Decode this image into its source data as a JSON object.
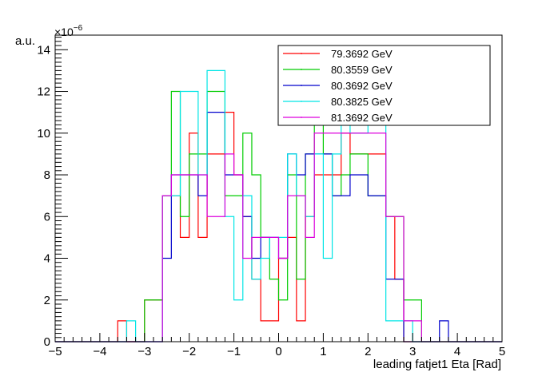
{
  "chart_data": {
    "type": "histogram-step",
    "xlabel": "leading fatjet1 Eta [Rad]",
    "ylabel": "a.u.",
    "y_multiplier_base": "×10",
    "y_multiplier_exp": "−6",
    "xlim": [
      -5,
      5
    ],
    "ylim": [
      0,
      14.7
    ],
    "x_ticks": [
      -5,
      -4,
      -3,
      -2,
      -1,
      0,
      1,
      2,
      3,
      4,
      5
    ],
    "x_tick_labels": [
      "−5",
      "−4",
      "−3",
      "−2",
      "−1",
      "0",
      "1",
      "2",
      "3",
      "4",
      "5"
    ],
    "y_ticks": [
      0,
      2,
      4,
      6,
      8,
      10,
      12,
      14
    ],
    "y_tick_labels": [
      "0",
      "2",
      "4",
      "6",
      "8",
      "10",
      "12",
      "14"
    ],
    "bin_edges": [
      -5.0,
      -4.8,
      -4.6,
      -4.4,
      -4.2,
      -4.0,
      -3.8,
      -3.6,
      -3.4,
      -3.2,
      -3.0,
      -2.8,
      -2.6,
      -2.4,
      -2.2,
      -2.0,
      -1.8,
      -1.6,
      -1.4,
      -1.2,
      -1.0,
      -0.8,
      -0.6,
      -0.4,
      -0.2,
      0.0,
      0.2,
      0.4,
      0.6,
      0.8,
      1.0,
      1.2,
      1.4,
      1.6,
      1.8,
      2.0,
      2.2,
      2.4,
      2.6,
      2.8,
      3.0,
      3.2,
      3.4,
      3.6,
      3.8,
      4.0,
      4.2,
      4.4,
      4.6,
      4.8,
      5.0
    ],
    "legend_position": "top-right",
    "series": [
      {
        "name": "79.3692 GeV",
        "color": "#ff0000",
        "values": [
          0,
          0,
          0,
          0,
          0,
          0,
          0,
          1,
          0,
          0,
          2,
          2,
          7,
          7,
          5,
          10,
          5,
          9,
          9,
          11,
          8,
          6,
          3,
          1,
          1,
          4,
          5,
          1,
          6,
          8,
          8,
          8,
          10,
          9,
          9,
          9,
          9,
          6,
          3,
          0,
          0,
          0,
          0,
          0,
          0,
          0,
          0,
          0,
          0,
          0
        ]
      },
      {
        "name": "80.3559 GeV",
        "color": "#00cc00",
        "values": [
          0,
          0,
          0,
          0,
          0,
          0,
          0,
          0,
          0,
          0,
          2,
          2,
          7,
          12,
          6,
          9,
          9,
          12,
          12,
          7,
          7,
          10,
          8,
          5,
          3,
          2,
          8,
          3,
          9,
          11,
          9,
          7,
          8,
          9,
          9,
          7,
          7,
          6,
          6,
          2,
          2,
          0,
          0,
          0,
          0,
          0,
          0,
          0,
          0,
          0
        ]
      },
      {
        "name": "80.3692 GeV",
        "color": "#0000cc",
        "values": [
          0,
          0,
          0,
          0,
          0,
          0,
          0,
          0,
          0,
          0,
          0,
          0,
          4,
          8,
          8,
          8,
          7,
          11,
          11,
          8,
          8,
          6,
          4,
          5,
          5,
          4,
          9,
          8,
          9,
          9,
          9,
          7,
          7,
          8,
          8,
          7,
          7,
          3,
          3,
          0,
          0,
          0,
          0,
          1,
          0,
          0,
          0,
          0,
          0,
          0
        ]
      },
      {
        "name": "80.3825 GeV",
        "color": "#00e5e5",
        "values": [
          0,
          0,
          0,
          0,
          0,
          0,
          0,
          0,
          1,
          0,
          0,
          0,
          7,
          7,
          12,
          12,
          8,
          13,
          13,
          6,
          2,
          7,
          3,
          4,
          5,
          5,
          9,
          7,
          6,
          9,
          4,
          9,
          11,
          10,
          10,
          11,
          11,
          1,
          1,
          1,
          0,
          0,
          0,
          0,
          0,
          0,
          0,
          0,
          0,
          0
        ]
      },
      {
        "name": "81.3692 GeV",
        "color": "#dd00dd",
        "values": [
          0,
          0,
          0,
          0,
          0,
          0,
          0,
          0,
          0,
          0,
          0,
          0,
          7,
          8,
          8,
          8,
          8,
          6,
          6,
          9,
          8,
          4,
          5,
          5,
          5,
          4,
          7,
          7,
          5,
          10,
          10,
          10,
          10,
          10,
          10,
          10,
          10,
          6,
          6,
          1,
          1,
          0,
          0,
          0,
          0,
          0,
          0,
          0,
          0,
          0
        ]
      }
    ]
  }
}
